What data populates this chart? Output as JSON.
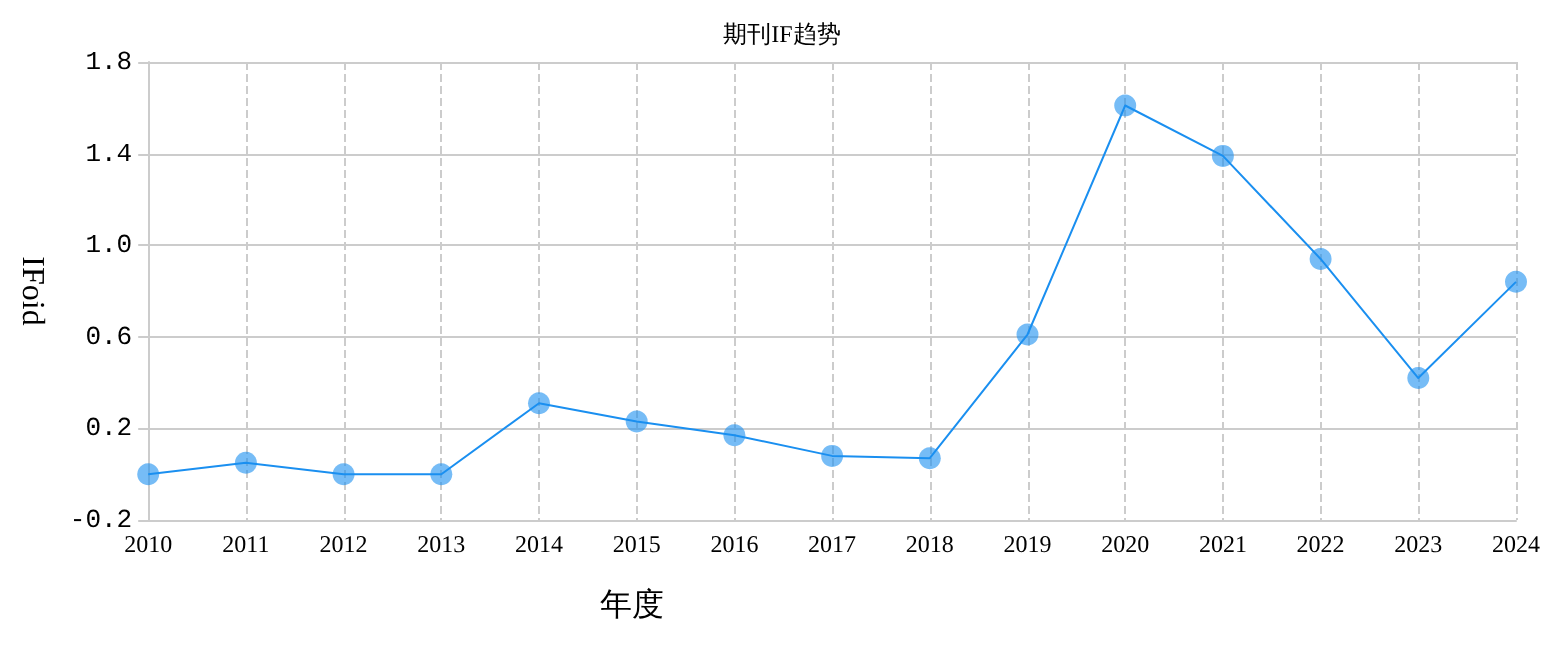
{
  "chart_data": {
    "type": "line",
    "title": "期刊IF趋势",
    "xlabel": "年度",
    "ylabel": "IFoid",
    "categories": [
      "2010",
      "2011",
      "2012",
      "2013",
      "2014",
      "2015",
      "2016",
      "2017",
      "2018",
      "2019",
      "2020",
      "2021",
      "2022",
      "2023",
      "2024"
    ],
    "series": [
      {
        "color": "#1a8ff0",
        "values": [
          0.0,
          0.05,
          0.0,
          0.0,
          0.31,
          0.23,
          0.17,
          0.08,
          0.07,
          0.61,
          1.61,
          1.39,
          0.94,
          0.42,
          0.84
        ]
      }
    ],
    "ylim": [
      -0.2,
      1.8
    ],
    "yticks": [
      -0.2,
      0.2,
      0.6,
      {
        "value": 1,
        "label": "1.0"
      },
      1.4,
      1.8
    ],
    "grid": true,
    "marker": "circle"
  }
}
